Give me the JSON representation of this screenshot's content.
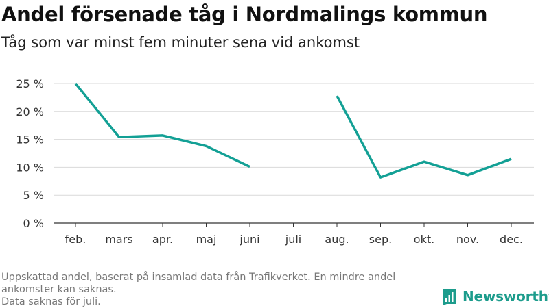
{
  "title": "Andel försenade tåg i Nordmalings kommun",
  "subtitle": "Tåg som var minst fem minuter sena vid ankomst",
  "footnote_lines": [
    "Uppskattad andel, baserat på insamlad data från Trafikverket. En mindre andel",
    "ankomster kan saknas.",
    "Data saknas för juli."
  ],
  "brand": {
    "name": "Newsworthy",
    "color": "#1c9c8c"
  },
  "colors": {
    "line": "#13a095",
    "grid": "#d9d9d9",
    "axis": "#333333"
  },
  "chart_data": {
    "type": "line",
    "categories": [
      "feb.",
      "mars",
      "apr.",
      "maj",
      "juni",
      "juli",
      "aug.",
      "sep.",
      "okt.",
      "nov.",
      "dec."
    ],
    "series": [
      {
        "values": [
          25.0,
          15.4,
          15.7,
          13.8,
          10.1,
          null,
          22.8,
          8.2,
          11.0,
          8.6,
          11.5
        ]
      }
    ],
    "ylim": [
      0,
      25
    ],
    "yticks": [
      0,
      5,
      10,
      15,
      20,
      25
    ],
    "ytick_labels": [
      "0 %",
      "5 %",
      "10 %",
      "15 %",
      "20 %",
      "25 %"
    ],
    "xlabel": "",
    "ylabel": "",
    "grid": true,
    "legend": "none"
  }
}
